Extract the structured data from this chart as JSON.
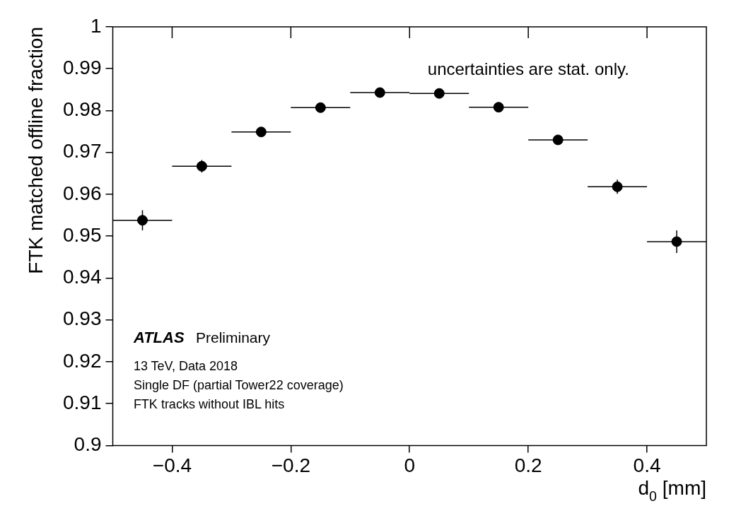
{
  "chart_data": {
    "type": "scatter",
    "xlabel": "d$_{0}$ [mm]",
    "ylabel": "FTK matched offline fraction",
    "x": [
      -0.45,
      -0.35,
      -0.25,
      -0.15,
      -0.05,
      0.05,
      0.15,
      0.25,
      0.35,
      0.45
    ],
    "series": [
      {
        "color": "#000000",
        "values": [
          0.9538,
          0.9667,
          0.9749,
          0.9807,
          0.9843,
          0.9841,
          0.9808,
          0.973,
          0.9618,
          0.9487
        ],
        "errors": [
          0.0024,
          0.0015,
          0.0006,
          0.0005,
          0.0005,
          0.0005,
          0.0005,
          0.0006,
          0.0017,
          0.0027
        ],
        "xerrors": [
          0.05,
          0.05,
          0.05,
          0.05,
          0.05,
          0.05,
          0.05,
          0.05,
          0.05,
          0.05
        ]
      }
    ],
    "xlim": [
      -0.5,
      0.5
    ],
    "xticks": [
      -0.4,
      -0.2,
      0,
      0.2,
      0.4
    ],
    "ylim": [
      0.9,
      1
    ],
    "yticks": [
      0.9,
      0.91,
      0.92,
      0.93,
      0.94,
      0.95,
      0.96,
      0.97,
      0.98,
      0.99,
      1
    ],
    "marker": "circle",
    "grid": false,
    "legend": false,
    "annotations": [
      "uncertainties are stat. only.",
      "ATLAS",
      "Preliminary",
      "13 TeV, Data 2018",
      "Single DF (partial Tower22 coverage)",
      "FTK tracks without IBL hits"
    ]
  }
}
